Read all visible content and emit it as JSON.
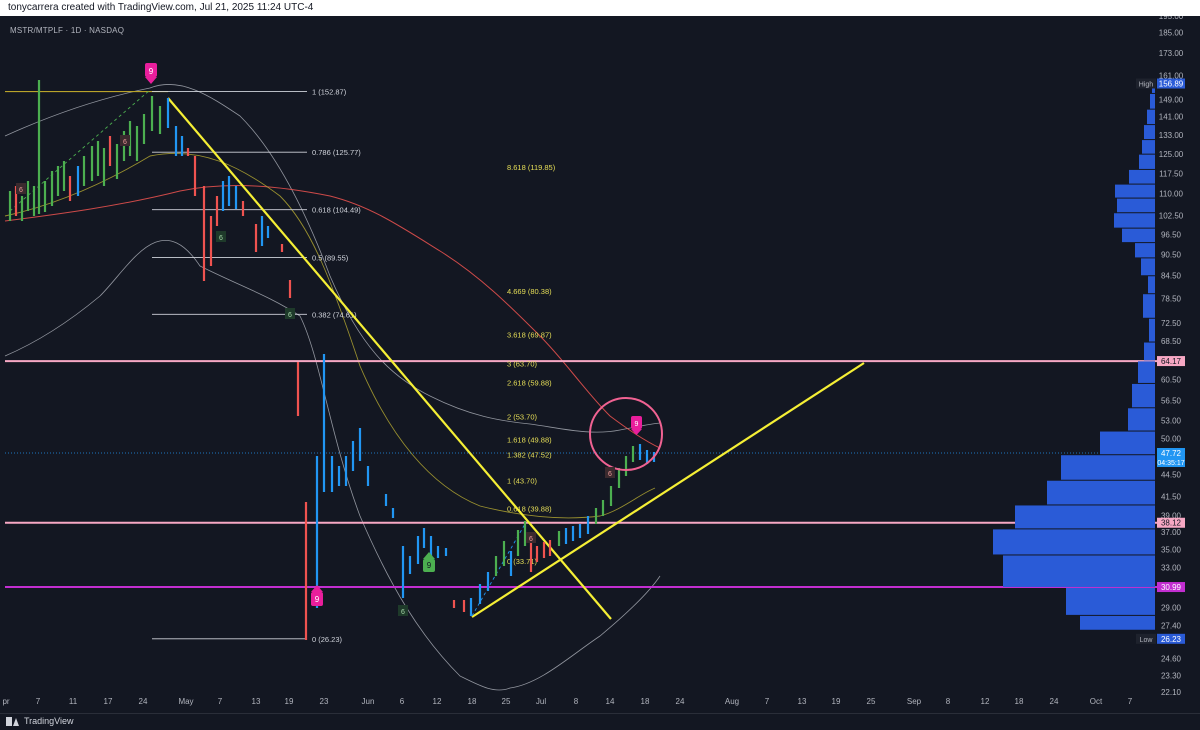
{
  "header": {
    "credit": "tonycarrera created with TradingView.com, Jul 21, 2025 11:24 UTC-4"
  },
  "symbol_line": "MSTR/MTPLF · 1D · NASDAQ",
  "footer": {
    "brand": "TradingView"
  },
  "colors": {
    "background": "#131722",
    "up_bar": "#4caf50",
    "down_bar": "#ef5350",
    "neutral_bar": "#2196f3",
    "trendline": "#f5ef35",
    "horizontal_pink": "#f7a8c4",
    "horizontal_magenta": "#c22ed1",
    "volume_profile": "#2a5bd7",
    "signal_magenta": "#e91e9c"
  },
  "chart_data": {
    "type": "bar",
    "subtype": "ohlc",
    "title": "",
    "xlabel": "",
    "ylabel": "",
    "ylim": [
      22.1,
      195.0
    ],
    "y_scale": "log",
    "grid": false,
    "x_ticks": [
      "pr",
      "7",
      "11",
      "17",
      "24",
      "May",
      "7",
      "13",
      "19",
      "23",
      "Jun",
      "6",
      "12",
      "18",
      "25",
      "Jul",
      "8",
      "14",
      "18",
      "24",
      "Aug",
      "7",
      "13",
      "19",
      "25",
      "Sep",
      "8",
      "12",
      "18",
      "24",
      "Oct",
      "7"
    ],
    "y_ticks": [
      "195.00",
      "185.00",
      "173.00",
      "161.00",
      "149.00",
      "141.00",
      "133.00",
      "125.00",
      "117.50",
      "110.00",
      "102.50",
      "96.50",
      "90.50",
      "84.50",
      "78.50",
      "72.50",
      "68.50",
      "64.17",
      "60.50",
      "56.50",
      "53.00",
      "50.00",
      "47.72",
      "44.50",
      "41.50",
      "39.00",
      "38.12",
      "37.00",
      "35.00",
      "33.00",
      "30.99",
      "29.00",
      "27.40",
      "26.23",
      "24.60",
      "23.30",
      "22.10"
    ],
    "price_labels": [
      {
        "label": "High",
        "value": "156.89",
        "color": "#2a5bd7"
      },
      {
        "label": "",
        "value": "64.17",
        "color": "#f7a8c4"
      },
      {
        "label": "",
        "value": "47.72",
        "sub": "04:35:17",
        "color": "#2196f3"
      },
      {
        "label": "",
        "value": "38.12",
        "color": "#f7a8c4"
      },
      {
        "label": "",
        "value": "30.99",
        "color": "#c22ed1"
      },
      {
        "label": "Low",
        "value": "26.23",
        "color": "#2a5bd7"
      }
    ],
    "fib_retracement": [
      {
        "label": "1 (152.87)",
        "value": 152.87
      },
      {
        "label": "0.786 (125.77)",
        "value": 125.77
      },
      {
        "label": "0.618 (104.49)",
        "value": 104.49
      },
      {
        "label": "0.5 (89.55)",
        "value": 89.55
      },
      {
        "label": "0.382 (74.61)",
        "value": 74.61
      },
      {
        "label": "0 (26.23)",
        "value": 26.23
      }
    ],
    "fib_extension": [
      {
        "label": "8.618 (119.85)",
        "value": 119.85
      },
      {
        "label": "4.669 (80.38)",
        "value": 80.38
      },
      {
        "label": "3.618 (69.87)",
        "value": 69.87
      },
      {
        "label": "3 (63.70)",
        "value": 63.7
      },
      {
        "label": "2.618 (59.88)",
        "value": 59.88
      },
      {
        "label": "2 (53.70)",
        "value": 53.7
      },
      {
        "label": "1.618 (49.88)",
        "value": 49.88
      },
      {
        "label": "1.382 (47.52)",
        "value": 47.52
      },
      {
        "label": "1 (43.70)",
        "value": 43.7
      },
      {
        "label": "0.618 (39.88)",
        "value": 39.88
      },
      {
        "label": "0 (33.71)",
        "value": 33.71
      }
    ],
    "horizontal_lines": [
      {
        "value": 64.17,
        "color": "#f7a8c4"
      },
      {
        "value": 38.12,
        "color": "#f7a8c4"
      },
      {
        "value": 30.99,
        "color": "#c22ed1"
      }
    ],
    "volume_profile": [
      {
        "price": 156.0,
        "size": 3
      },
      {
        "price": 148.0,
        "size": 5
      },
      {
        "price": 141.0,
        "size": 8
      },
      {
        "price": 134.0,
        "size": 11
      },
      {
        "price": 128.0,
        "size": 13
      },
      {
        "price": 122.0,
        "size": 16
      },
      {
        "price": 116.0,
        "size": 26
      },
      {
        "price": 111.0,
        "size": 40
      },
      {
        "price": 106.0,
        "size": 38
      },
      {
        "price": 101.0,
        "size": 41
      },
      {
        "price": 96.0,
        "size": 33
      },
      {
        "price": 92.0,
        "size": 20
      },
      {
        "price": 87.0,
        "size": 14
      },
      {
        "price": 82.0,
        "size": 7
      },
      {
        "price": 77.5,
        "size": 12
      },
      {
        "price": 70.0,
        "size": 6
      },
      {
        "price": 66.5,
        "size": 11
      },
      {
        "price": 62.0,
        "size": 17
      },
      {
        "price": 57.5,
        "size": 23
      },
      {
        "price": 53.0,
        "size": 27
      },
      {
        "price": 49.5,
        "size": 55
      },
      {
        "price": 45.5,
        "size": 94
      },
      {
        "price": 42.0,
        "size": 108
      },
      {
        "price": 38.8,
        "size": 140
      },
      {
        "price": 36.0,
        "size": 162
      },
      {
        "price": 32.8,
        "size": 152
      },
      {
        "price": 29.2,
        "size": 89
      },
      {
        "price": 27.4,
        "size": 75
      }
    ]
  }
}
